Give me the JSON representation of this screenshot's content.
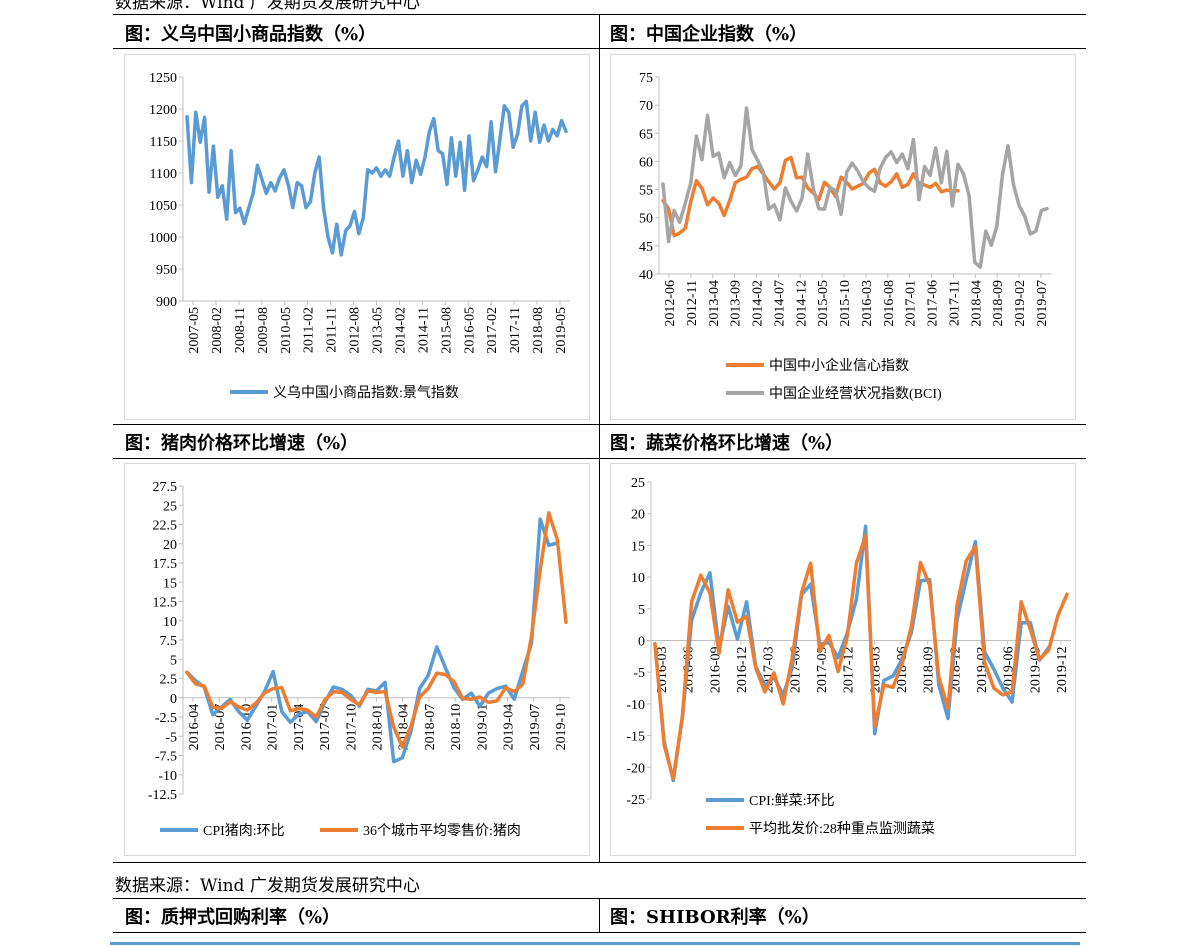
{
  "top_source": "数据来源：Wind 广发期货发展研究中心",
  "bottom_source": "数据来源：Wind 广发期货发展研究中心",
  "titles": {
    "yiwu": "图：义乌中国小商品指数（%）",
    "bci": "图：中国企业指数（%）",
    "pork": "图：猪肉价格环比增速（%）",
    "veg": "图：蔬菜价格环比增速（%）",
    "repo": "图：质押式回购利率（%）",
    "shibor": "图：SHIBOR利率（%）"
  },
  "colors": {
    "blue": "#5b9bd5",
    "orange": "#ed7d31",
    "gray": "#a5a5a5",
    "axis": "#bfbfbf"
  },
  "chart_data": [
    {
      "id": "yiwu",
      "type": "line",
      "title": "图：义乌中国小商品指数（%）",
      "ylim": [
        900,
        1250
      ],
      "yticks": [
        900,
        950,
        1000,
        1050,
        1100,
        1150,
        1200,
        1250
      ],
      "x_labels": [
        "2007-05",
        "2008-02",
        "2008-11",
        "2009-08",
        "2010-05",
        "2011-02",
        "2011-11",
        "2012-08",
        "2013-05",
        "2014-02",
        "2014-11",
        "2015-08",
        "2016-05",
        "2017-02",
        "2017-11",
        "2018-08",
        "2019-05"
      ],
      "series": [
        {
          "name": "义乌中国小商品指数:景气指数",
          "color": "#5b9bd5",
          "values": [
            1188,
            1085,
            1195,
            1148,
            1187,
            1070,
            1142,
            1062,
            1080,
            1028,
            1135,
            1038,
            1045,
            1021,
            1045,
            1068,
            1112,
            1090,
            1068,
            1085,
            1072,
            1092,
            1105,
            1081,
            1046,
            1085,
            1080,
            1046,
            1055,
            1100,
            1125,
            1045,
            1000,
            975,
            1020,
            972,
            1010,
            1018,
            1040,
            1005,
            1030,
            1105,
            1100,
            1108,
            1095,
            1105,
            1095,
            1125,
            1150,
            1095,
            1135,
            1085,
            1120,
            1098,
            1125,
            1165,
            1185,
            1135,
            1130,
            1082,
            1155,
            1095,
            1148,
            1073,
            1158,
            1088,
            1105,
            1125,
            1110,
            1180,
            1102,
            1152,
            1205,
            1195,
            1140,
            1160,
            1205,
            1212,
            1150,
            1195,
            1148,
            1175,
            1150,
            1168,
            1158,
            1182,
            1165
          ]
        }
      ]
    },
    {
      "id": "bci",
      "type": "line",
      "title": "图：中国企业指数（%）",
      "ylim": [
        40,
        75
      ],
      "yticks": [
        40,
        45,
        50,
        55,
        60,
        65,
        70,
        75
      ],
      "x_labels": [
        "2012-06",
        "2012-11",
        "2013-04",
        "2013-09",
        "2014-02",
        "2014-07",
        "2014-12",
        "2015-05",
        "2015-10",
        "2016-03",
        "2016-08",
        "2017-01",
        "2017-06",
        "2017-11",
        "2018-04",
        "2018-09",
        "2019-02",
        "2019-07"
      ],
      "series": [
        {
          "name": "中国中小企业信心指数",
          "color": "#ed7d31",
          "start": 0,
          "values": [
            53,
            51.6,
            46.8,
            47.3,
            48.1,
            52.9,
            56.6,
            55.2,
            52.3,
            53.5,
            52.6,
            50.4,
            53.1,
            56.2,
            56.8,
            57.2,
            58.7,
            59.1,
            57.8,
            56.4,
            55.1,
            56.2,
            60.2,
            60.7,
            57.1,
            57.2,
            55.3,
            54.4,
            53.2,
            56.3,
            55.4,
            53.8,
            57.2,
            56.3,
            55.1,
            55.6,
            56.1,
            57.9,
            58.6,
            56.2,
            55.6,
            56.4,
            57.8,
            55.4,
            55.9,
            57.8,
            56.1,
            55.8,
            55.4,
            56.1,
            54.6,
            54.9,
            54.7,
            54.8
          ]
        },
        {
          "name": "中国企业经营状况指数(BCI)",
          "color": "#a5a5a5",
          "start": 0,
          "values": [
            56,
            45.8,
            51.3,
            49.2,
            52.6,
            56.2,
            64.5,
            60.3,
            68.2,
            60.9,
            61.5,
            57.1,
            59.8,
            57.5,
            59.2,
            69.5,
            62.1,
            60.2,
            58.2,
            51.5,
            52.3,
            49.6,
            55.3,
            52.9,
            51.2,
            53.5,
            61.3,
            55.2,
            51.6,
            51.5,
            55.4,
            54.8,
            50.6,
            58.1,
            59.7,
            58.3,
            56.4,
            55.3,
            54.7,
            58.7,
            60.7,
            61.7,
            59.8,
            61.3,
            58.7,
            63.9,
            53.2,
            59.1,
            57.5,
            62.4,
            56.2,
            61.8,
            52.1,
            59.5,
            57.8,
            53.9,
            42.1,
            41.2,
            47.6,
            45.1,
            48.6,
            57.7,
            62.8,
            55.8,
            52.1,
            50.3,
            47.1,
            47.6,
            51.3,
            51.6
          ]
        }
      ]
    },
    {
      "id": "pork",
      "type": "line",
      "title": "图：猪肉价格环比增速（%）",
      "ylim": [
        -12.5,
        27.5
      ],
      "yticks": [
        -12.5,
        -10,
        -7.5,
        -5,
        -2.5,
        0,
        2.5,
        5,
        7.5,
        10,
        12.5,
        15,
        17.5,
        20,
        22.5,
        25,
        27.5
      ],
      "x_labels": [
        "2016-04",
        "2016-07",
        "2016-10",
        "2017-01",
        "2017-04",
        "2017-07",
        "2017-10",
        "2018-01",
        "2018-04",
        "2018-07",
        "2018-10",
        "2019-01",
        "2019-04",
        "2019-07",
        "2019-10"
      ],
      "series": [
        {
          "name": "CPI猪肉:环比",
          "color": "#5b9bd5",
          "values": [
            3.3,
            2.2,
            1.4,
            -2.2,
            -1.2,
            -0.2,
            -1.8,
            -2.9,
            -1.1,
            0.8,
            3.4,
            -1.8,
            -3.2,
            -2.1,
            -1.8,
            -3.1,
            -0.6,
            1.4,
            1.1,
            0.3,
            -1.1,
            1.1,
            0.9,
            2,
            -8.3,
            -7.8,
            -4.3,
            1.2,
            2.9,
            6.6,
            3.9,
            1.3,
            -0.2,
            0.6,
            -1.1,
            0.6,
            1.2,
            1.5,
            -0.2,
            3.5,
            7.1,
            23.2,
            19.8,
            20.1
          ]
        },
        {
          "name": "36个城市平均零售价:猪肉",
          "color": "#ed7d31",
          "values": [
            3.3,
            1.8,
            1.5,
            -1.2,
            -1.4,
            -0.5,
            -1.2,
            -1.6,
            -0.7,
            0.6,
            1.2,
            1.3,
            -1.7,
            -1.4,
            -1.6,
            -2.5,
            -0.3,
            0.8,
            0.7,
            -0.2,
            -0.9,
            0.9,
            0.7,
            0.8,
            -3.8,
            -6.4,
            -3.7,
            0.1,
            1.2,
            3.2,
            3,
            2.1,
            -0.1,
            -0.2,
            0.1,
            -0.6,
            -0.4,
            1.3,
            0.8,
            1.8,
            8,
            16.6,
            24,
            20.5,
            9.8
          ]
        }
      ]
    },
    {
      "id": "veg",
      "type": "line",
      "title": "图：蔬菜价格环比增速（%）",
      "ylim": [
        -25,
        25
      ],
      "yticks": [
        -25,
        -20,
        -15,
        -10,
        -5,
        0,
        5,
        10,
        15,
        20,
        25
      ],
      "x_labels": [
        "2016-03",
        "2016-06",
        "2016-09",
        "2016-12",
        "2017-03",
        "2017-06",
        "2017-09",
        "2017-12",
        "2018-03",
        "2018-06",
        "2018-09",
        "2018-12",
        "2019-03",
        "2019-06",
        "2019-09",
        "2019-12"
      ],
      "series": [
        {
          "name": "CPI:鲜菜:环比",
          "color": "#5b9bd5",
          "values": [
            -0.5,
            -16,
            -22.1,
            -12,
            3.2,
            7.5,
            10.7,
            -1.3,
            5.4,
            0.2,
            6.1,
            -4.1,
            -7.1,
            -5.8,
            -8.6,
            -4.2,
            7.2,
            8.9,
            -0.6,
            -0.3,
            -2.7,
            1.2,
            6.5,
            18,
            -14.7,
            -6.3,
            -5.6,
            -2.9,
            1.3,
            9.4,
            9.6,
            -7,
            -12.3,
            3.3,
            9.7,
            15.6,
            -1.8,
            -4.5,
            -7.5,
            -9.7,
            2.8,
            2.8,
            -3.1,
            -1.1
          ]
        },
        {
          "name": "平均批发价:28种重点监测蔬菜",
          "color": "#ed7d31",
          "values": [
            -0.5,
            -16.5,
            -21.8,
            -11.8,
            6.1,
            10.3,
            7.5,
            -2,
            8,
            2.9,
            3.8,
            -4.3,
            -8.1,
            -5.1,
            -10,
            -2.7,
            7.5,
            12.2,
            -1.7,
            0.8,
            -4.9,
            0.7,
            12.2,
            16.5,
            -13.6,
            -7,
            -7.4,
            -3.6,
            2.2,
            12.3,
            8.7,
            -5.8,
            -10.7,
            5.6,
            12.6,
            14.8,
            -3.4,
            -7.5,
            -8.6,
            -8.1,
            6.1,
            1.7,
            -3,
            -1.5,
            3.9,
            7.3
          ]
        }
      ]
    }
  ]
}
